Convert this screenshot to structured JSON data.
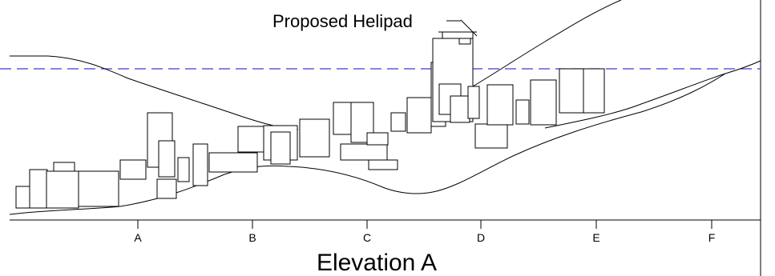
{
  "drawing": {
    "title": "Elevation A",
    "callout": "Proposed Helipad",
    "markers": [
      "A",
      "B",
      "C",
      "D",
      "E",
      "F"
    ],
    "colors": {
      "ink": "#000000",
      "reference_line": "#3c3cd2",
      "background": "#ffffff"
    }
  }
}
